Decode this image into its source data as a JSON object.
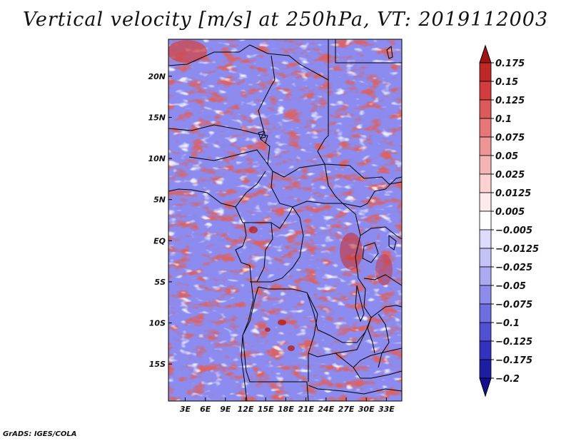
{
  "title": "Vertical velocity [m/s] at 250hPa, VT: 2019112003",
  "credit": "GrADS: IGES/COLA",
  "map": {
    "lat_labels": [
      "20N",
      "15N",
      "10N",
      "5N",
      "EQ",
      "5S",
      "10S",
      "15S"
    ],
    "lat_values": [
      20,
      15,
      10,
      5,
      0,
      -5,
      -10,
      -15
    ],
    "lon_labels": [
      "3E",
      "6E",
      "9E",
      "12E",
      "15E",
      "18E",
      "21E",
      "24E",
      "27E",
      "30E",
      "33E"
    ],
    "lon_values": [
      3,
      6,
      9,
      12,
      15,
      18,
      21,
      24,
      27,
      30,
      33
    ],
    "lat_range": [
      -19.5,
      24.5
    ],
    "lon_range": [
      0.5,
      35.3
    ],
    "colors": {
      "background_blue": "#8c8cf0",
      "strong_red": "#b41e1e",
      "border": "#000000"
    }
  },
  "colorbar": {
    "labels": [
      "0.175",
      "0.15",
      "0.125",
      "0.1",
      "0.075",
      "0.05",
      "0.025",
      "0.0125",
      "0.005",
      "−0.005",
      "−0.0125",
      "−0.025",
      "−0.05",
      "−0.075",
      "−0.1",
      "−0.125",
      "−0.175",
      "−0.2"
    ],
    "colors": [
      "#a01414",
      "#c02828",
      "#d23c3c",
      "#dc5a5a",
      "#e67878",
      "#ee9696",
      "#f5b4b4",
      "#fad2d2",
      "#fdeaea",
      "#ffffff",
      "#dcdcfa",
      "#c3c3f5",
      "#aaaaf0",
      "#8c8cea",
      "#6e6ee0",
      "#5050d2",
      "#3232be",
      "#1e1ea0",
      "#140f8c"
    ]
  }
}
